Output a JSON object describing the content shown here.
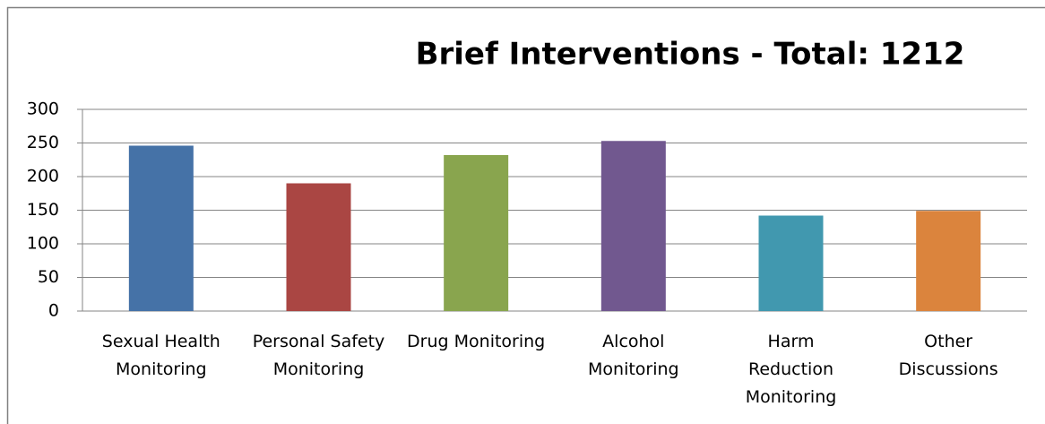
{
  "chart_data": {
    "type": "bar",
    "title": "Brief Interventions - Total: 1212",
    "categories": [
      "Sexual Health Monitoring",
      "Personal Safety Monitoring",
      "Drug Monitoring",
      "Alcohol Monitoring",
      "Harm Reduction Monitoring",
      "Other Discussions"
    ],
    "values": [
      246,
      190,
      232,
      253,
      142,
      149
    ],
    "colors": [
      "#4572a7",
      "#aa4643",
      "#89a54e",
      "#71588f",
      "#4198af",
      "#db843d"
    ],
    "ylim": [
      0,
      300
    ],
    "yticks": [
      0,
      50,
      100,
      150,
      200,
      250,
      300
    ],
    "grid": true
  }
}
